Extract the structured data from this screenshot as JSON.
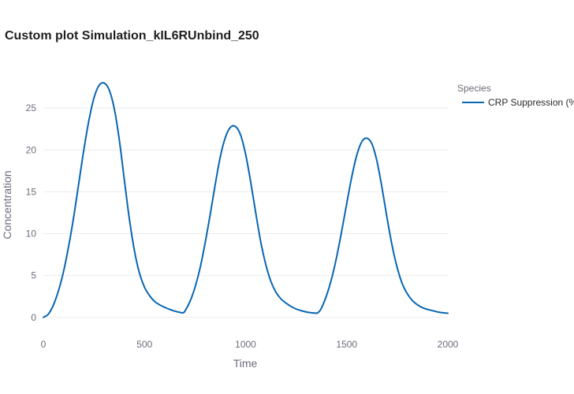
{
  "chart_data": {
    "type": "line",
    "title": "Custom plot Simulation_kIL6RUnbind_250",
    "xlabel": "Time",
    "ylabel": "Concentration",
    "xlim": [
      0,
      2000
    ],
    "ylim": [
      -2,
      28.5
    ],
    "x_ticks": [
      0,
      500,
      1000,
      1500,
      2000
    ],
    "x_tick_labels": [
      "0",
      "500",
      "1000",
      "1500",
      "2000"
    ],
    "y_ticks": [
      0,
      5,
      10,
      15,
      20,
      25
    ],
    "y_tick_labels": [
      "0",
      "5",
      "10",
      "15",
      "20",
      "25"
    ],
    "grid": true,
    "legend": {
      "title": "Species",
      "placement": "right"
    },
    "series": [
      {
        "name": "CRP Suppression (%",
        "color": "#0866b4",
        "x": [
          0,
          25,
          50,
          75,
          100,
          125,
          150,
          175,
          200,
          225,
          250,
          275,
          300,
          325,
          350,
          375,
          400,
          425,
          450,
          475,
          500,
          525,
          550,
          575,
          600,
          625,
          650,
          675,
          690,
          700,
          725,
          750,
          775,
          800,
          825,
          850,
          875,
          900,
          925,
          950,
          975,
          1000,
          1025,
          1050,
          1075,
          1100,
          1125,
          1150,
          1175,
          1200,
          1225,
          1250,
          1275,
          1300,
          1325,
          1350,
          1360,
          1375,
          1400,
          1425,
          1450,
          1475,
          1500,
          1525,
          1550,
          1575,
          1600,
          1625,
          1650,
          1675,
          1700,
          1725,
          1750,
          1775,
          1800,
          1825,
          1850,
          1875,
          1900,
          1925,
          1950,
          1975,
          2000
        ],
        "y": [
          0.0,
          0.4,
          1.5,
          3.2,
          5.5,
          8.5,
          12.0,
          16.0,
          20.0,
          23.5,
          26.2,
          27.7,
          28.0,
          27.2,
          25.0,
          21.3,
          16.5,
          11.8,
          8.0,
          5.3,
          3.6,
          2.6,
          1.9,
          1.5,
          1.2,
          0.95,
          0.75,
          0.6,
          0.55,
          0.75,
          1.9,
          3.6,
          5.9,
          8.9,
          12.3,
          15.9,
          19.2,
          21.5,
          22.7,
          22.8,
          21.8,
          19.5,
          16.2,
          12.5,
          9.0,
          6.3,
          4.3,
          3.0,
          2.2,
          1.7,
          1.3,
          1.0,
          0.8,
          0.65,
          0.55,
          0.5,
          0.6,
          1.1,
          2.6,
          4.6,
          7.2,
          10.3,
          13.6,
          16.8,
          19.4,
          21.0,
          21.4,
          20.7,
          18.6,
          15.4,
          11.8,
          8.5,
          5.9,
          4.0,
          2.8,
          2.0,
          1.5,
          1.15,
          0.95,
          0.8,
          0.65,
          0.55,
          0.5
        ]
      }
    ]
  }
}
